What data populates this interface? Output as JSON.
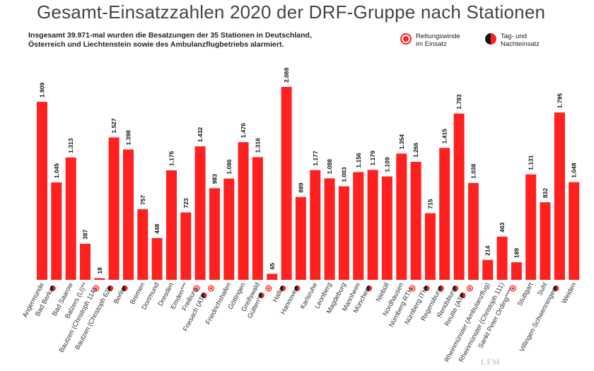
{
  "title": "Gesamt-Einsatzzahlen 2020 der DRF-Gruppe nach Stationen",
  "subtitle": "Insgesamt 39.971-mal wurden die Besatzungen der 35 Stationen in Deutschland, Österreich und Liechtenstein sowie des Ambulanzflugbetriebs alarmiert.",
  "legend": {
    "rescue_winch": "Rettungswinde im Einsatz",
    "day_night": "Tag- und Nachteinsatz"
  },
  "colors": {
    "bar": "#ff2020",
    "accent_dark": "#111111",
    "text": "#222222"
  },
  "watermark": "LFM",
  "chart_data": {
    "type": "bar",
    "ylim": [
      0,
      2069
    ],
    "categories": [
      {
        "label": "Angermünde",
        "value": 1909,
        "value_label": "1.909",
        "icons": []
      },
      {
        "label": "Bad Berka",
        "value": 1045,
        "value_label": "1.045",
        "icons": [
          "day-night"
        ]
      },
      {
        "label": "Bad Saarow",
        "value": 1313,
        "value_label": "1.313",
        "icons": []
      },
      {
        "label": "Balzers (LI)**",
        "value": 387,
        "value_label": "387",
        "icons": []
      },
      {
        "label": "Bautzen (Christoph 114)",
        "value": 18,
        "value_label": "18",
        "icons": [
          "rescue"
        ]
      },
      {
        "label": "Bautzen (Christoph 62)",
        "value": 1527,
        "value_label": "1.527",
        "icons": [
          "day-night"
        ]
      },
      {
        "label": "Berlin",
        "value": 1398,
        "value_label": "1.398",
        "icons": [
          "day-night"
        ]
      },
      {
        "label": "Bremen",
        "value": 757,
        "value_label": "757",
        "icons": []
      },
      {
        "label": "Dortmund",
        "value": 448,
        "value_label": "448",
        "icons": []
      },
      {
        "label": "Dresden",
        "value": 1175,
        "value_label": "1.175",
        "icons": []
      },
      {
        "label": "Emden***",
        "value": 723,
        "value_label": "723",
        "icons": []
      },
      {
        "label": "Freiburg",
        "value": 1432,
        "value_label": "1.432",
        "icons": [
          "rescue"
        ]
      },
      {
        "label": "Friesach (AT)*",
        "value": 983,
        "value_label": "983",
        "icons": [
          "day-night",
          "rescue"
        ]
      },
      {
        "label": "Friedrichshafen",
        "value": 1086,
        "value_label": "1.086",
        "icons": []
      },
      {
        "label": "Göttingen",
        "value": 1476,
        "value_label": "1.476",
        "icons": []
      },
      {
        "label": "Greifswald",
        "value": 1316,
        "value_label": "1.316",
        "icons": []
      },
      {
        "label": "Gütten***",
        "value": 65,
        "value_label": "65",
        "icons": [
          "day-night",
          "rescue"
        ]
      },
      {
        "label": "Halle",
        "value": 2069,
        "value_label": "2.069",
        "icons": [
          "day-night"
        ]
      },
      {
        "label": "Hannover",
        "value": 889,
        "value_label": "889",
        "icons": [
          "day-night"
        ]
      },
      {
        "label": "Karlsruhe",
        "value": 1177,
        "value_label": "1.177",
        "icons": []
      },
      {
        "label": "Leonberg",
        "value": 1088,
        "value_label": "1.088",
        "icons": []
      },
      {
        "label": "Magdeburg",
        "value": 1003,
        "value_label": "1.003",
        "icons": []
      },
      {
        "label": "Mannheim",
        "value": 1156,
        "value_label": "1.156",
        "icons": []
      },
      {
        "label": "München",
        "value": 1179,
        "value_label": "1.179",
        "icons": [
          "day-night"
        ]
      },
      {
        "label": "Niebüll",
        "value": 1109,
        "value_label": "1.109",
        "icons": []
      },
      {
        "label": "Nordhausen",
        "value": 1354,
        "value_label": "1.354",
        "icons": []
      },
      {
        "label": "Nürnberg RTH",
        "value": 1266,
        "value_label": "1.266",
        "icons": [
          "rescue"
        ]
      },
      {
        "label": "Nürnberg ITH",
        "value": 715,
        "value_label": "715",
        "icons": [
          "day-night"
        ]
      },
      {
        "label": "Regensburg",
        "value": 1415,
        "value_label": "1.415",
        "icons": [
          "day-night"
        ]
      },
      {
        "label": "Rendsburg",
        "value": 1783,
        "value_label": "1.783",
        "icons": [
          "day-night"
        ]
      },
      {
        "label": "Reutte (AT)*",
        "value": 1038,
        "value_label": "1.038",
        "icons": [
          "day-night",
          "rescue"
        ]
      },
      {
        "label": "Rheinmünster (Ambulanzflug)",
        "value": 214,
        "value_label": "214",
        "icons": []
      },
      {
        "label": "Rheinmünster (Christoph 111)",
        "value": 463,
        "value_label": "463",
        "icons": []
      },
      {
        "label": "Sankt Peter Ording****",
        "value": 189,
        "value_label": "189",
        "icons": [
          "rescue"
        ]
      },
      {
        "label": "Stuttgart",
        "value": 1131,
        "value_label": "1.131",
        "icons": []
      },
      {
        "label": "Suhl",
        "value": 832,
        "value_label": "832",
        "icons": []
      },
      {
        "label": "Villingen-Schwenningen",
        "value": 1795,
        "value_label": "1.795",
        "icons": [
          "day-night"
        ]
      },
      {
        "label": "Weiden",
        "value": 1048,
        "value_label": "1.048",
        "icons": []
      }
    ]
  }
}
